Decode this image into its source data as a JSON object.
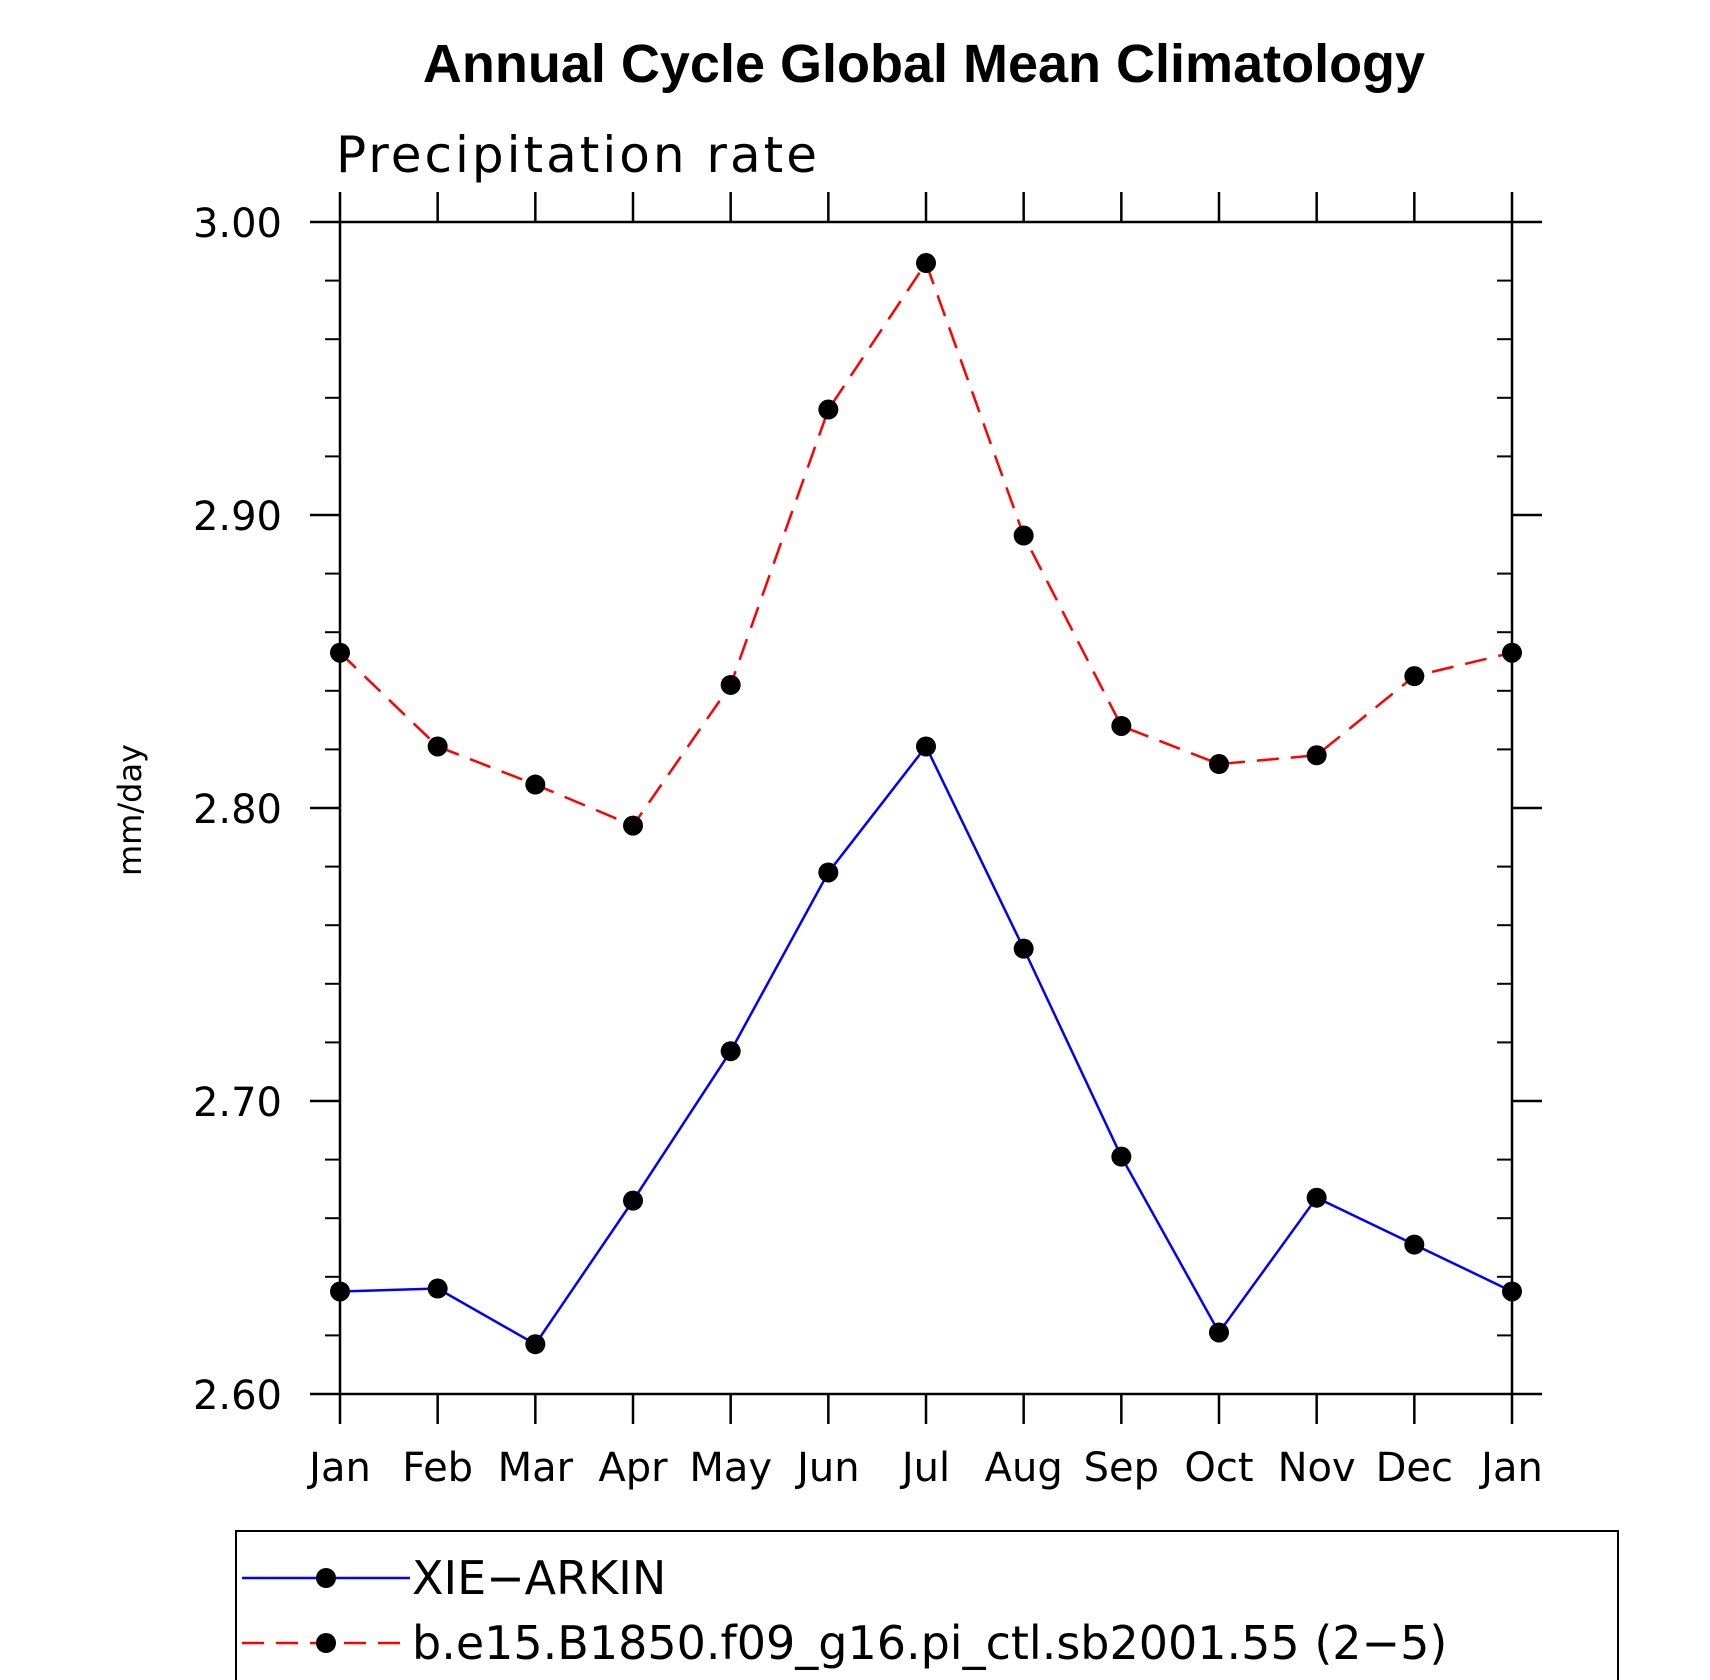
{
  "chart_data": {
    "type": "line",
    "title": "Annual Cycle Global Mean Climatology",
    "subtitle": "Precipitation rate",
    "ylabel": "mm/day",
    "xlabel": "",
    "categories": [
      "Jan",
      "Feb",
      "Mar",
      "Apr",
      "May",
      "Jun",
      "Jul",
      "Aug",
      "Sep",
      "Oct",
      "Nov",
      "Dec",
      "Jan"
    ],
    "ylim": [
      2.6,
      3.0
    ],
    "yticks": [
      "2.60",
      "2.70",
      "2.80",
      "2.90",
      "3.00"
    ],
    "legend_position": "bottom",
    "series": [
      {
        "name": "XIE−ARKIN",
        "color": "#0000ff",
        "dash": "solid",
        "marker": "filled-circle",
        "values": [
          2.635,
          2.636,
          2.617,
          2.666,
          2.717,
          2.778,
          2.821,
          2.752,
          2.681,
          2.621,
          2.667,
          2.651,
          2.635
        ]
      },
      {
        "name": "b.e15.B1850.f09_g16.pi_ctl.sb2001.55 (2−5)",
        "color": "#ff0000",
        "dash": "dashed",
        "marker": "filled-circle",
        "values": [
          2.853,
          2.821,
          2.808,
          2.794,
          2.842,
          2.936,
          2.986,
          2.893,
          2.828,
          2.815,
          2.818,
          2.845,
          2.853
        ]
      }
    ]
  }
}
